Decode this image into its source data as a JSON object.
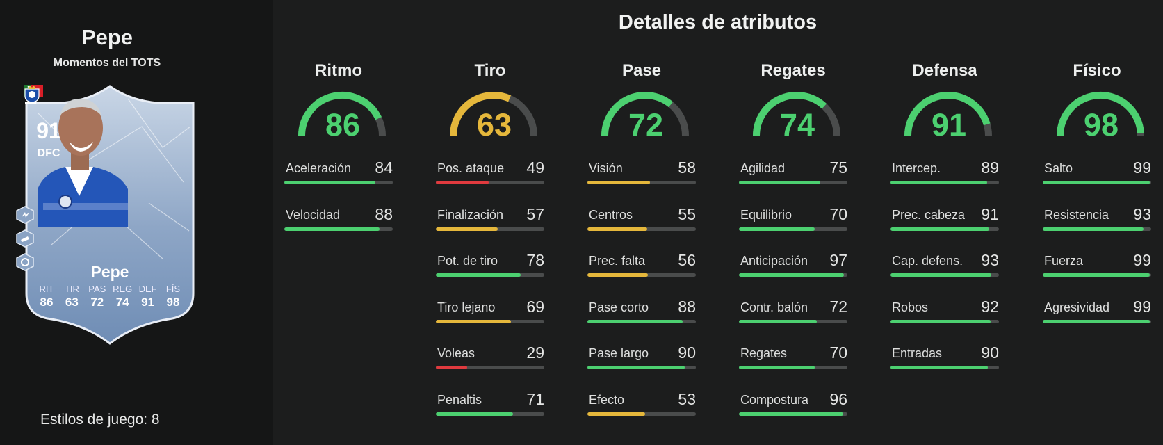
{
  "player": {
    "name": "Pepe",
    "subtitle": "Momentos del TOTS",
    "playstyles_label": "Estilos de juego: 8"
  },
  "card": {
    "rating": "91",
    "position": "DFC",
    "name": "Pepe",
    "stats": [
      {
        "label": "RIT",
        "value": "86"
      },
      {
        "label": "TIR",
        "value": "63"
      },
      {
        "label": "PAS",
        "value": "72"
      },
      {
        "label": "REG",
        "value": "74"
      },
      {
        "label": "DEF",
        "value": "91"
      },
      {
        "label": "FÍS",
        "value": "98"
      }
    ],
    "league_logo_text": "LIGA PORTUGAL"
  },
  "details_title": "Detalles de atributos",
  "colors": {
    "high": "#4cd070",
    "mid": "#e5b73b",
    "low": "#e03a3e",
    "track": "#4a4c4c"
  },
  "categories": [
    {
      "name": "Ritmo",
      "value": 86,
      "items": [
        {
          "label": "Aceleración",
          "value": 84
        },
        {
          "label": "Velocidad",
          "value": 88
        }
      ]
    },
    {
      "name": "Tiro",
      "value": 63,
      "items": [
        {
          "label": "Pos. ataque",
          "value": 49
        },
        {
          "label": "Finalización",
          "value": 57
        },
        {
          "label": "Pot. de tiro",
          "value": 78
        },
        {
          "label": "Tiro lejano",
          "value": 69
        },
        {
          "label": "Voleas",
          "value": 29
        },
        {
          "label": "Penaltis",
          "value": 71
        }
      ]
    },
    {
      "name": "Pase",
      "value": 72,
      "items": [
        {
          "label": "Visión",
          "value": 58
        },
        {
          "label": "Centros",
          "value": 55
        },
        {
          "label": "Prec. falta",
          "value": 56
        },
        {
          "label": "Pase corto",
          "value": 88
        },
        {
          "label": "Pase largo",
          "value": 90
        },
        {
          "label": "Efecto",
          "value": 53
        }
      ]
    },
    {
      "name": "Regates",
      "value": 74,
      "items": [
        {
          "label": "Agilidad",
          "value": 75
        },
        {
          "label": "Equilibrio",
          "value": 70
        },
        {
          "label": "Anticipación",
          "value": 97
        },
        {
          "label": "Contr. balón",
          "value": 72
        },
        {
          "label": "Regates",
          "value": 70
        },
        {
          "label": "Compostura",
          "value": 96
        }
      ]
    },
    {
      "name": "Defensa",
      "value": 91,
      "items": [
        {
          "label": "Intercep.",
          "value": 89
        },
        {
          "label": "Prec. cabeza",
          "value": 91
        },
        {
          "label": "Cap. defens.",
          "value": 93
        },
        {
          "label": "Robos",
          "value": 92
        },
        {
          "label": "Entradas",
          "value": 90
        }
      ]
    },
    {
      "name": "Físico",
      "value": 98,
      "items": [
        {
          "label": "Salto",
          "value": 99
        },
        {
          "label": "Resistencia",
          "value": 93
        },
        {
          "label": "Fuerza",
          "value": 99
        },
        {
          "label": "Agresividad",
          "value": 99
        }
      ]
    }
  ]
}
